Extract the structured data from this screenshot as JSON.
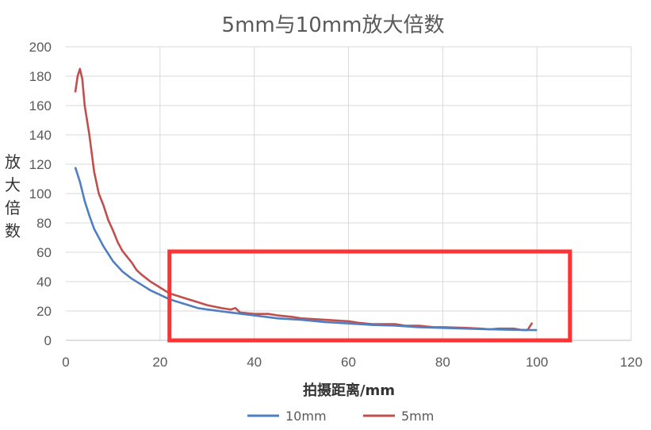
{
  "chart_data": {
    "type": "line",
    "title": "5mm与10mm放大倍数",
    "xlabel": "拍摄距离/mm",
    "ylabel": "放大倍数",
    "xlim": [
      0,
      120
    ],
    "ylim": [
      0,
      200
    ],
    "xticks": [
      0,
      20,
      40,
      60,
      80,
      100,
      120
    ],
    "yticks": [
      0,
      20,
      40,
      60,
      80,
      100,
      120,
      140,
      160,
      180,
      200
    ],
    "grid": true,
    "legend_position": "bottom",
    "series": [
      {
        "name": "10mm",
        "color": "#4F7FC0",
        "points": [
          [
            2,
            118
          ],
          [
            3,
            108
          ],
          [
            4,
            95
          ],
          [
            5,
            85
          ],
          [
            6,
            76
          ],
          [
            8,
            64
          ],
          [
            10,
            54
          ],
          [
            12,
            47
          ],
          [
            14,
            42
          ],
          [
            16,
            38
          ],
          [
            18,
            34
          ],
          [
            20,
            31
          ],
          [
            22,
            28
          ],
          [
            25,
            25
          ],
          [
            28,
            22
          ],
          [
            30,
            21
          ],
          [
            35,
            19
          ],
          [
            40,
            17
          ],
          [
            45,
            15
          ],
          [
            50,
            14
          ],
          [
            55,
            12.5
          ],
          [
            60,
            11.5
          ],
          [
            65,
            10.5
          ],
          [
            70,
            10
          ],
          [
            75,
            9
          ],
          [
            80,
            8.5
          ],
          [
            85,
            8
          ],
          [
            90,
            7.5
          ],
          [
            95,
            7.2
          ],
          [
            100,
            7
          ]
        ]
      },
      {
        "name": "5mm",
        "color": "#C0504D",
        "points": [
          [
            2,
            169
          ],
          [
            2.5,
            180
          ],
          [
            3,
            185
          ],
          [
            3.5,
            178
          ],
          [
            4,
            160
          ],
          [
            5,
            140
          ],
          [
            6,
            115
          ],
          [
            7,
            100
          ],
          [
            8,
            92
          ],
          [
            9,
            82
          ],
          [
            10,
            75
          ],
          [
            11,
            67
          ],
          [
            12,
            61
          ],
          [
            13,
            57
          ],
          [
            14,
            53
          ],
          [
            15,
            48
          ],
          [
            16,
            45
          ],
          [
            18,
            40
          ],
          [
            20,
            36
          ],
          [
            22,
            32
          ],
          [
            25,
            29
          ],
          [
            28,
            26
          ],
          [
            30,
            24
          ],
          [
            33,
            22
          ],
          [
            35,
            21
          ],
          [
            36,
            22
          ],
          [
            37,
            19
          ],
          [
            40,
            18
          ],
          [
            43,
            18
          ],
          [
            45,
            17
          ],
          [
            48,
            16
          ],
          [
            50,
            15
          ],
          [
            55,
            14
          ],
          [
            60,
            13
          ],
          [
            62,
            12
          ],
          [
            65,
            11
          ],
          [
            70,
            11
          ],
          [
            72,
            10
          ],
          [
            75,
            10
          ],
          [
            78,
            9
          ],
          [
            80,
            9
          ],
          [
            85,
            8.5
          ],
          [
            88,
            8
          ],
          [
            90,
            7.5
          ],
          [
            92,
            8
          ],
          [
            95,
            8
          ],
          [
            97,
            7
          ],
          [
            98,
            7
          ],
          [
            99,
            12
          ]
        ]
      }
    ],
    "highlight_box": {
      "x_range": [
        22,
        107
      ],
      "y_range": [
        0,
        60
      ],
      "color": "#FF3333"
    }
  }
}
